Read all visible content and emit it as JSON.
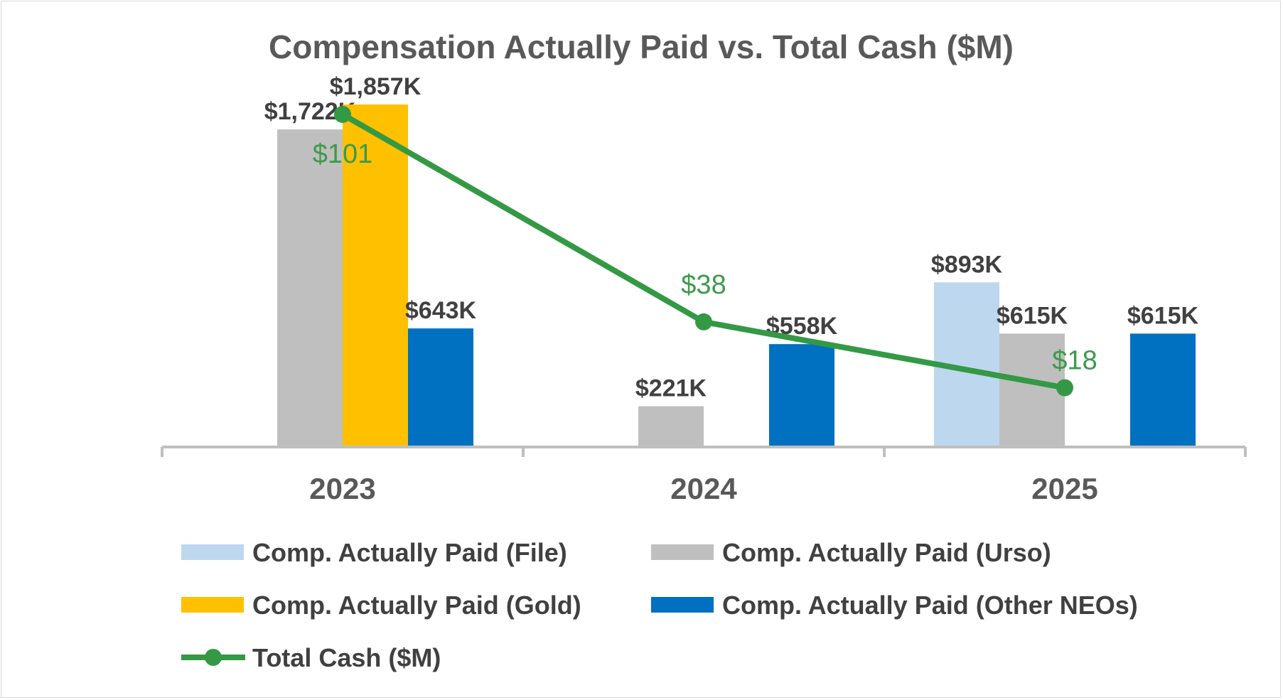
{
  "chart_data": {
    "type": "bar",
    "title": "Compensation Actually Paid vs. Total Cash ($M)",
    "categories": [
      "2023",
      "2024",
      "2025"
    ],
    "series": [
      {
        "name": "Comp. Actually Paid (File)",
        "color": "#bdd7ee",
        "values": [
          null,
          null,
          893
        ],
        "labels": [
          "",
          "",
          "$893K"
        ]
      },
      {
        "name": "Comp. Actually Paid (Urso)",
        "color": "#bfbfbf",
        "values": [
          1722,
          221,
          615
        ],
        "labels": [
          "$1,722K",
          "$221K",
          "$615K"
        ]
      },
      {
        "name": "Comp. Actually Paid (Gold)",
        "color": "#ffc000",
        "values": [
          1857,
          null,
          null
        ],
        "labels": [
          "$1,857K",
          "",
          ""
        ]
      },
      {
        "name": "Comp. Actually Paid (Other NEOs)",
        "color": "#0070c0",
        "values": [
          643,
          558,
          615
        ],
        "labels": [
          "$643K",
          "$558K",
          "$615K"
        ]
      }
    ],
    "line_series": {
      "name": "Total Cash ($M)",
      "color": "#339944",
      "label_color": "#3d9a4c",
      "values": [
        101,
        38,
        18
      ],
      "labels": [
        "$101",
        "$38",
        "$18"
      ]
    },
    "ylim": [
      0,
      2000
    ],
    "line_ylim": [
      0,
      112
    ],
    "xlabel": "",
    "ylabel": "",
    "legend_position": "bottom",
    "grid": false
  }
}
